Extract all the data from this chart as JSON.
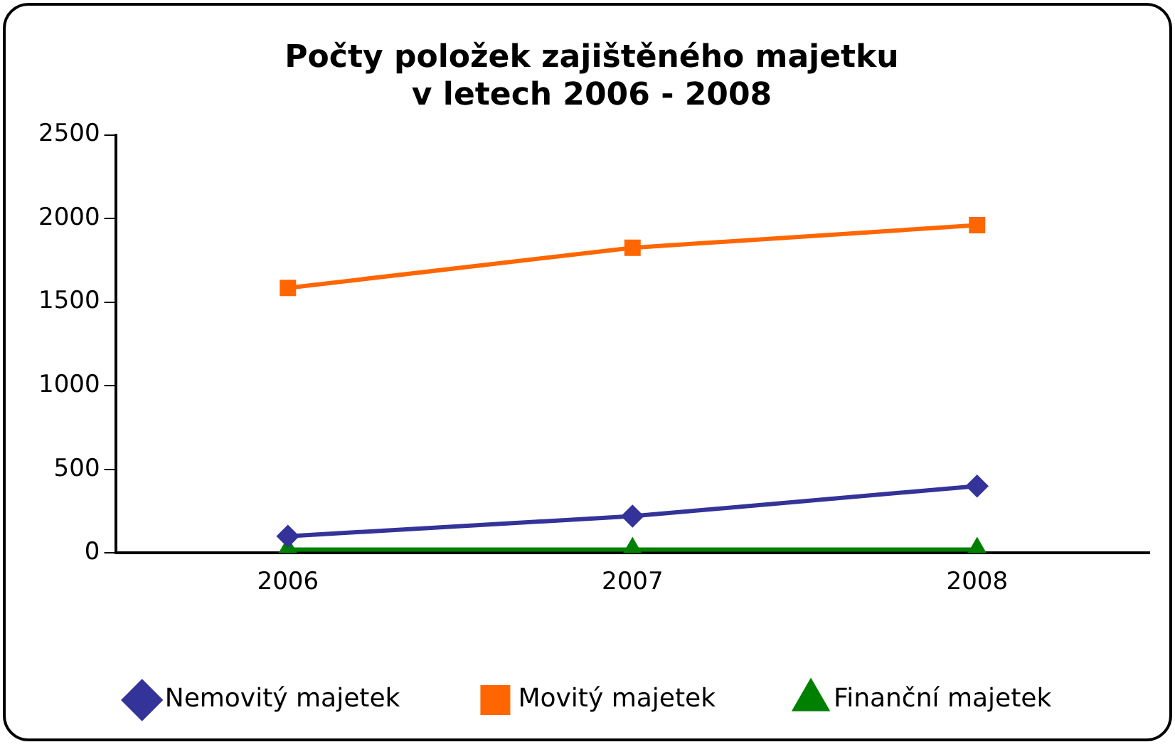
{
  "chart_data": {
    "type": "line",
    "title": "Počty položek zajištěného majetku\nv letech 2006 - 2008",
    "categories": [
      "2006",
      "2007",
      "2008"
    ],
    "series": [
      {
        "name": "Nemovitý majetek",
        "color": "#333399",
        "marker": "diamond",
        "values": [
          100,
          220,
          400
        ]
      },
      {
        "name": "Movitý majetek",
        "color": "#ff6600",
        "marker": "square",
        "values": [
          1585,
          1825,
          1960
        ]
      },
      {
        "name": "Finanční majetek",
        "color": "#008000",
        "marker": "triangle",
        "values": [
          20,
          20,
          20
        ]
      }
    ],
    "ylim": [
      0,
      2500
    ],
    "yticks": [
      0,
      500,
      1000,
      1500,
      2000,
      2500
    ],
    "grid": false,
    "legend": "bottom",
    "line_style": "solid"
  }
}
